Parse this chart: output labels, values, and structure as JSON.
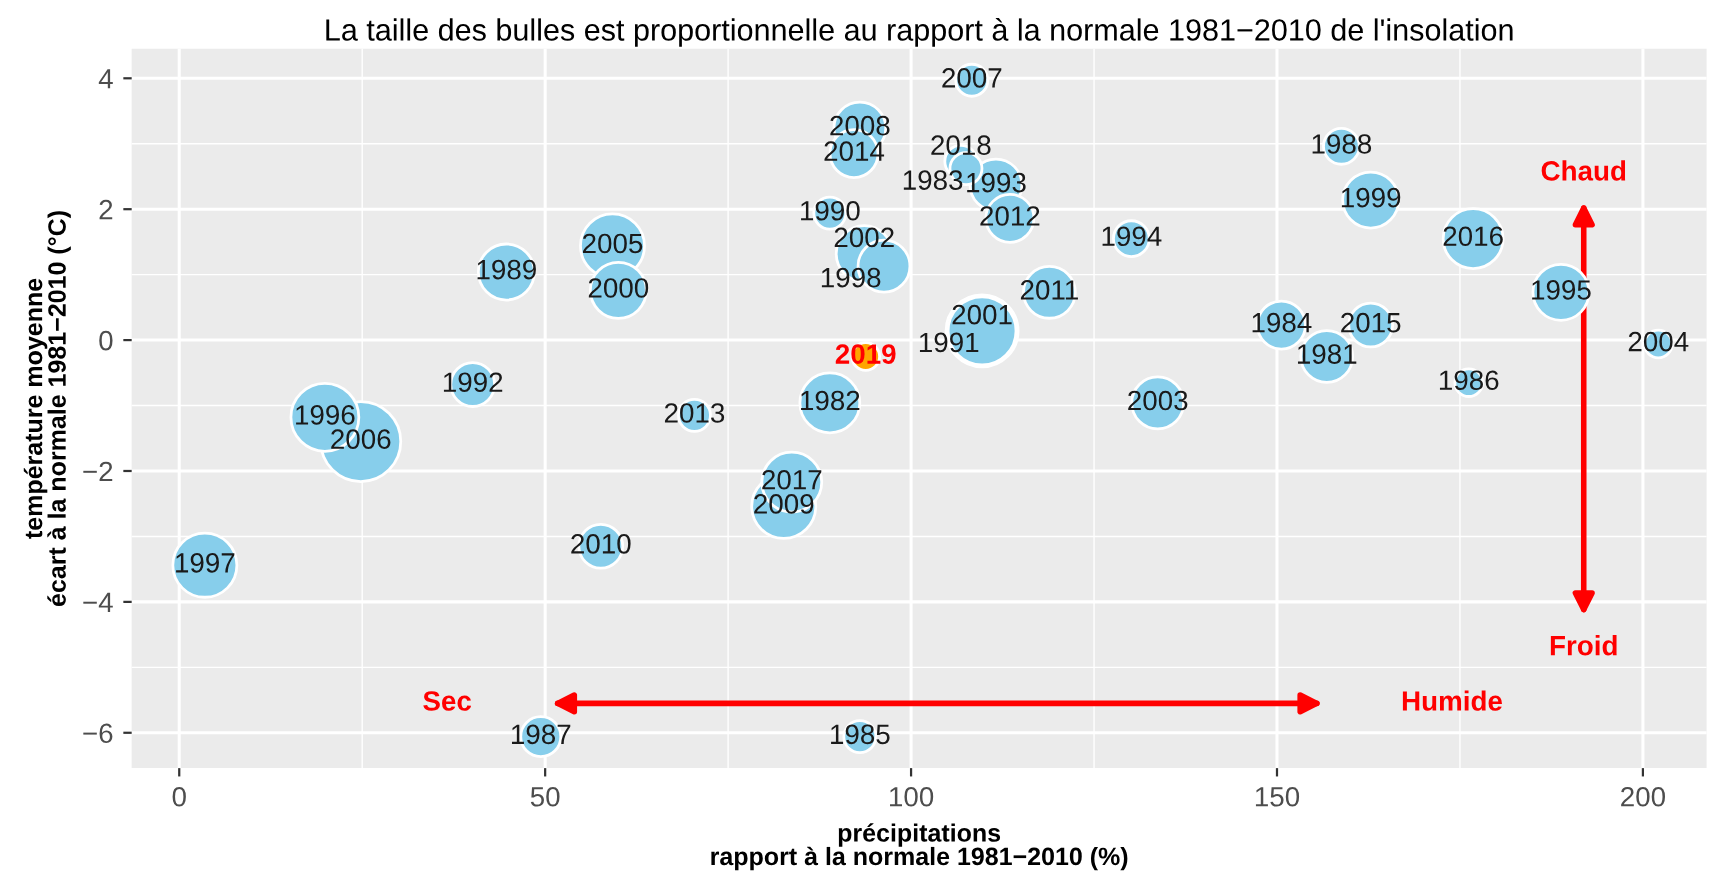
{
  "chart_data": {
    "type": "bubble",
    "title": "La taille des bulles est proportionnelle au rapport à la normale 1981−2010 de l'insolation",
    "xlabel": "précipitations\nrapport à la normale 1981−2010 (%)",
    "ylabel": "température moyenne\nécart à la normale 1981−2010 (°C)",
    "xlim": [
      -6.5,
      208.7
    ],
    "ylim": [
      -6.54,
      4.45
    ],
    "xticks": [
      0,
      50,
      100,
      150,
      200
    ],
    "yticks": [
      -6,
      -4,
      -2,
      0,
      2,
      4
    ],
    "grid": true,
    "legend": false,
    "marker": "circle",
    "series": [
      {
        "color": "#87ceeb",
        "x": [
          3.5,
          19.9,
          24.8,
          40.1,
          44.7,
          59.2,
          60.0,
          70.4,
          57.6,
          49.4,
          83.7,
          82.6,
          88.9,
          93.0,
          88.9,
          93.0,
          92.2,
          93.6,
          96.3,
          108.3,
          106.8,
          107.5,
          111.6,
          113.5,
          118.9,
          109.7,
          109.7,
          130.1,
          133.7,
          150.6,
          156.8,
          158.8,
          162.8,
          162.8,
          176.8,
          176.2,
          188.8,
          202.1
        ],
        "values": [
          -3.44,
          -1.18,
          -1.55,
          -0.68,
          1.04,
          1.44,
          0.76,
          -1.15,
          -3.15,
          -6.06,
          -2.17,
          -2.54,
          -0.96,
          -6.06,
          1.94,
          3.24,
          2.85,
          1.32,
          1.13,
          3.97,
          2.73,
          2.62,
          2.37,
          1.86,
          0.73,
          0.14,
          0.14,
          1.55,
          -0.96,
          0.23,
          -0.25,
          2.96,
          2.14,
          0.23,
          1.55,
          -0.65,
          0.73,
          -0.06
        ],
        "sizes": [
          0.64,
          0.72,
          1.0,
          0.3,
          0.49,
          0.64,
          0.49,
          0.16,
          0.3,
          0.25,
          0.56,
          0.64,
          0.56,
          0.16,
          0.16,
          0.42,
          0.36,
          0.49,
          0.42,
          0.16,
          0.16,
          0.16,
          0.42,
          0.36,
          0.42,
          0.72,
          0.81,
          0.2,
          0.42,
          0.36,
          0.42,
          0.2,
          0.49,
          0.3,
          0.56,
          0.12,
          0.49,
          0.12
        ]
      },
      {
        "name": "2019",
        "color": "#ffa500",
        "x": [
          93.8
        ],
        "values": [
          -0.25
        ],
        "sizes": [
          0.12
        ]
      }
    ],
    "annotations": [
      {
        "text": "1997",
        "x": 3.5,
        "y": -3.44
      },
      {
        "text": "1996",
        "x": 19.9,
        "y": -1.18
      },
      {
        "text": "2006",
        "x": 24.8,
        "y": -1.55
      },
      {
        "text": "1992",
        "x": 40.1,
        "y": -0.68
      },
      {
        "text": "1989",
        "x": 44.7,
        "y": 1.04
      },
      {
        "text": "2005",
        "x": 59.2,
        "y": 1.44
      },
      {
        "text": "2000",
        "x": 60.0,
        "y": 0.76
      },
      {
        "text": "2013",
        "x": 70.4,
        "y": -1.15
      },
      {
        "text": "2010",
        "x": 57.6,
        "y": -3.15
      },
      {
        "text": "1987",
        "x": 49.4,
        "y": -6.06
      },
      {
        "text": "2017",
        "x": 83.7,
        "y": -2.17
      },
      {
        "text": "2009",
        "x": 82.6,
        "y": -2.54
      },
      {
        "text": "1982",
        "x": 88.9,
        "y": -0.96
      },
      {
        "text": "1985",
        "x": 93.0,
        "y": -6.06
      },
      {
        "text": "1990",
        "x": 88.9,
        "y": 1.94
      },
      {
        "text": "2008",
        "x": 93.0,
        "y": 3.24
      },
      {
        "text": "2014",
        "x": 92.2,
        "y": 2.85
      },
      {
        "text": "2002",
        "x": 93.6,
        "y": 1.32
      },
      {
        "text": "1998",
        "x": 96.3,
        "y": 1.13
      },
      {
        "text": "2007",
        "x": 108.3,
        "y": 3.97
      },
      {
        "text": "2018",
        "x": 106.8,
        "y": 2.73
      },
      {
        "text": "1983",
        "x": 107.5,
        "y": 2.62
      },
      {
        "text": "1993",
        "x": 111.6,
        "y": 2.37
      },
      {
        "text": "2012",
        "x": 113.5,
        "y": 1.86
      },
      {
        "text": "2011",
        "x": 118.9,
        "y": 0.73
      },
      {
        "text": "2001",
        "x": 109.7,
        "y": 0.14
      },
      {
        "text": "1991",
        "x": 109.7,
        "y": 0.14
      },
      {
        "text": "1994",
        "x": 130.1,
        "y": 1.55
      },
      {
        "text": "2003",
        "x": 133.7,
        "y": -0.96
      },
      {
        "text": "1984",
        "x": 150.6,
        "y": 0.23
      },
      {
        "text": "1981",
        "x": 156.8,
        "y": -0.25
      },
      {
        "text": "1988",
        "x": 158.8,
        "y": 2.96
      },
      {
        "text": "1999",
        "x": 162.8,
        "y": 2.14
      },
      {
        "text": "2015",
        "x": 162.8,
        "y": 0.23
      },
      {
        "text": "2016",
        "x": 176.8,
        "y": 1.55
      },
      {
        "text": "1986",
        "x": 176.2,
        "y": -0.65
      },
      {
        "text": "1995",
        "x": 188.8,
        "y": 0.73
      },
      {
        "text": "2004",
        "x": 202.1,
        "y": -0.06
      },
      "Sec",
      "Humide",
      "Chaud",
      "Froid"
    ]
  }
}
